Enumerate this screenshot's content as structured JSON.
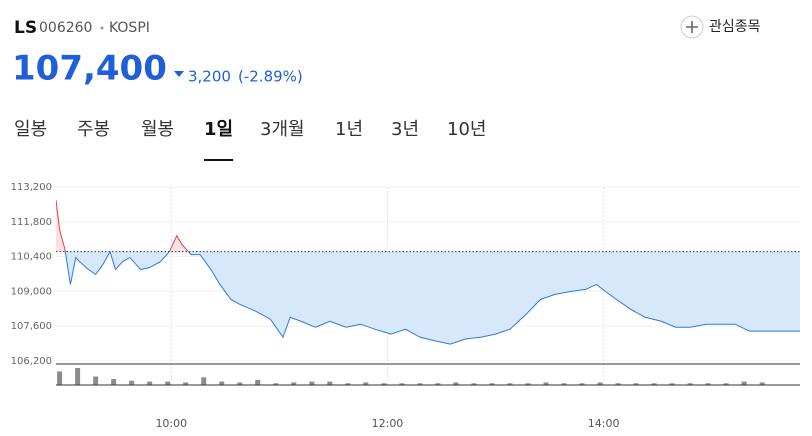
{
  "header": {
    "name": "LS",
    "code": "006260",
    "market": "KOSPI",
    "watch": "관심종목",
    "price": "107,400",
    "change": "3,200",
    "change_pct": "(-2.89%)"
  },
  "tabs": [
    {
      "label": "일봉"
    },
    {
      "label": "주봉"
    },
    {
      "label": "월봉"
    },
    {
      "label": "1일",
      "active": true
    },
    {
      "label": "3개월"
    },
    {
      "label": "1년"
    },
    {
      "label": "3년"
    },
    {
      "label": "10년"
    }
  ],
  "chart_data": {
    "type": "line",
    "x": [
      -4,
      -2,
      1,
      4,
      7,
      9,
      14,
      18,
      22,
      26,
      29,
      33,
      37,
      43,
      48,
      54,
      59,
      63,
      66,
      71,
      76,
      82,
      87,
      93,
      98,
      107,
      115,
      122,
      126,
      132,
      140,
      148,
      157,
      165,
      173,
      182,
      190,
      198,
      207,
      215,
      223,
      232,
      240,
      248,
      257,
      265,
      273,
      282,
      290,
      296,
      301,
      307,
      315,
      323,
      332,
      340,
      348,
      357,
      365,
      373,
      381,
      409
    ],
    "series": [
      {
        "color": "#2b7bd8",
        "up_color": "#e0424a",
        "values": [
          112680,
          111480,
          110680,
          109280,
          110360,
          110200,
          109880,
          109680,
          110080,
          110600,
          109880,
          110200,
          110360,
          109880,
          109960,
          110200,
          110600,
          111240,
          110880,
          110480,
          110480,
          109880,
          109280,
          108680,
          108480,
          108200,
          107880,
          107160,
          107960,
          107800,
          107560,
          107800,
          107560,
          107680,
          107480,
          107280,
          107480,
          107160,
          107000,
          106880,
          107080,
          107160,
          107280,
          107480,
          108080,
          108680,
          108880,
          109000,
          109080,
          109280,
          109000,
          108680,
          108280,
          107960,
          107800,
          107560,
          107560,
          107680,
          107680,
          107680,
          107400,
          107400
        ]
      }
    ],
    "reference_line": 110600,
    "xlim": [
      -4,
      409
    ],
    "xticks": [
      {
        "value": 60,
        "label": "10:00"
      },
      {
        "value": 180,
        "label": "12:00"
      },
      {
        "value": 300,
        "label": "14:00"
      }
    ],
    "ylim": [
      106200,
      113200
    ],
    "yticks": [
      {
        "value": 106200,
        "label": "106,200"
      },
      {
        "value": 107600,
        "label": "107,600"
      },
      {
        "value": 109000,
        "label": "109,000"
      },
      {
        "value": 110400,
        "label": "110,400"
      },
      {
        "value": 111800,
        "label": "111,800"
      },
      {
        "value": 113200,
        "label": "113,200"
      }
    ],
    "grid": true,
    "volume": {
      "color": "#8c8c8c",
      "ylim": [
        0,
        20
      ],
      "x": [
        -2,
        8,
        18,
        28,
        38,
        48,
        58,
        68,
        78,
        88,
        98,
        108,
        118,
        128,
        138,
        148,
        158,
        168,
        178,
        188,
        198,
        208,
        218,
        228,
        238,
        248,
        258,
        268,
        278,
        288,
        298,
        308,
        318,
        328,
        338,
        348,
        358,
        368,
        378,
        388
      ],
      "values": [
        16,
        20,
        10,
        7,
        5,
        4,
        4,
        3,
        9,
        4,
        3,
        6,
        2,
        3,
        4,
        4,
        2,
        3,
        2,
        2,
        2,
        2,
        3,
        2,
        2,
        2,
        2,
        3,
        2,
        2,
        3,
        2,
        2,
        2,
        2,
        2,
        2,
        2,
        4,
        3
      ]
    }
  }
}
